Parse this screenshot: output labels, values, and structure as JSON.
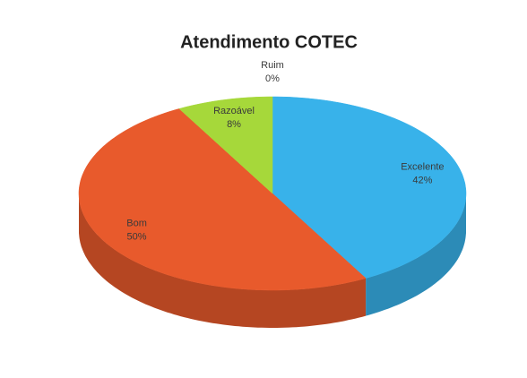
{
  "chart_data": {
    "type": "pie",
    "title": "Atendimento COTEC",
    "categories": [
      "Excelente",
      "Bom",
      "Razoável",
      "Ruim"
    ],
    "values": [
      42,
      50,
      8,
      0
    ],
    "value_labels": [
      "42%",
      "50%",
      "8%",
      "0%"
    ],
    "colors": [
      "#38b2ea",
      "#e85a2c",
      "#a6d83a",
      "#7f7f7f"
    ]
  }
}
